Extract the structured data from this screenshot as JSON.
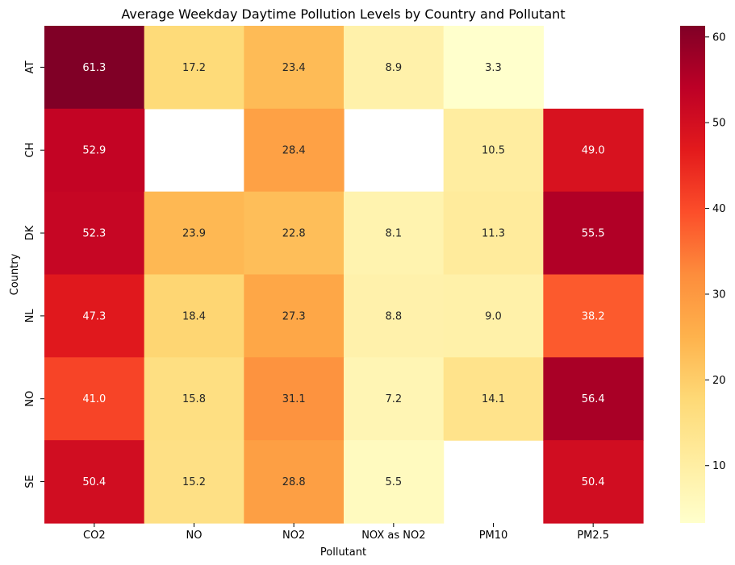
{
  "chart_data": {
    "type": "heatmap",
    "title": "Average Weekday Daytime Pollution Levels by Country and Pollutant",
    "xlabel": "Pollutant",
    "ylabel": "Country",
    "x_categories": [
      "CO2",
      "NO",
      "NO2",
      "NOX as NO2",
      "PM10",
      "PM2.5"
    ],
    "y_categories": [
      "AT",
      "CH",
      "DK",
      "NL",
      "NO",
      "SE"
    ],
    "values": [
      [
        61.3,
        17.2,
        23.4,
        8.9,
        3.3,
        null
      ],
      [
        52.9,
        null,
        28.4,
        null,
        10.5,
        49.0
      ],
      [
        52.3,
        23.9,
        22.8,
        8.1,
        11.3,
        55.5
      ],
      [
        47.3,
        18.4,
        27.3,
        8.8,
        9.0,
        38.2
      ],
      [
        41.0,
        15.8,
        31.1,
        7.2,
        14.1,
        56.4
      ],
      [
        50.4,
        15.2,
        28.8,
        5.5,
        null,
        50.4
      ]
    ],
    "value_labels": [
      [
        "61.3",
        "17.2",
        "23.4",
        "8.9",
        "3.3",
        ""
      ],
      [
        "52.9",
        "",
        "28.4",
        "",
        "10.5",
        "49.0"
      ],
      [
        "52.3",
        "23.9",
        "22.8",
        "8.1",
        "11.3",
        "55.5"
      ],
      [
        "47.3",
        "18.4",
        "27.3",
        "8.8",
        "9.0",
        "38.2"
      ],
      [
        "41.0",
        "15.8",
        "31.1",
        "7.2",
        "14.1",
        "56.4"
      ],
      [
        "50.4",
        "15.2",
        "28.8",
        "5.5",
        "",
        "50.4"
      ]
    ],
    "colormap": "YlOrRd",
    "vmin": 3.3,
    "vmax": 61.3,
    "colorbar_ticks": [
      10,
      20,
      30,
      40,
      50,
      60
    ],
    "colorbar_tick_labels": [
      "10",
      "20",
      "30",
      "40",
      "50",
      "60"
    ],
    "missing_values": "blank",
    "grid": false,
    "legend": "colorbar-right"
  }
}
